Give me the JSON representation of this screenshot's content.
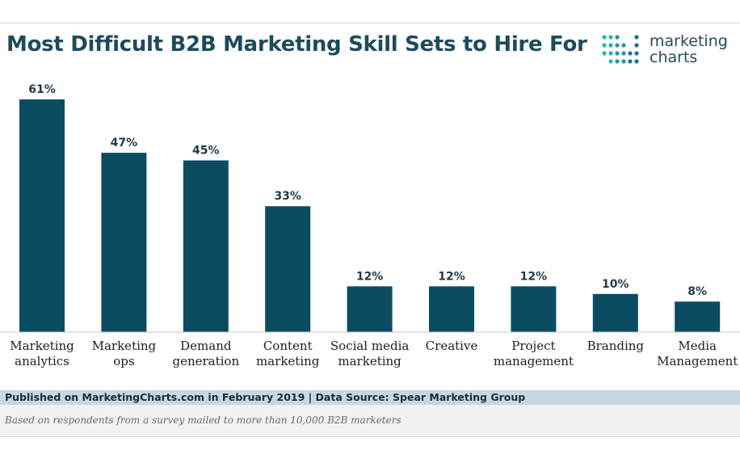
{
  "brand": {
    "logo_line1": "marketing",
    "logo_line2": "charts",
    "colors": {
      "bar": "#0c4c62",
      "title": "#1f4a5b",
      "logo_dots": [
        "#2ab5a5",
        "#1e93a6",
        "#16748f"
      ]
    }
  },
  "chart_data": {
    "type": "bar",
    "title": "Most Difficult B2B Marketing Skill Sets to Hire For",
    "xlabel": "",
    "ylabel": "",
    "ylim": [
      0,
      61
    ],
    "grid": false,
    "categories": [
      [
        "Marketing",
        "analytics"
      ],
      [
        "Marketing",
        "ops"
      ],
      [
        "Demand",
        "generation"
      ],
      [
        "Content",
        "marketing"
      ],
      [
        "Social media",
        "marketing"
      ],
      [
        "Creative"
      ],
      [
        "Project",
        "management"
      ],
      [
        "Branding"
      ],
      [
        "Media",
        "Management"
      ]
    ],
    "values": [
      61,
      47,
      45,
      33,
      12,
      12,
      12,
      10,
      8
    ],
    "value_labels": [
      "61%",
      "47%",
      "45%",
      "33%",
      "12%",
      "12%",
      "12%",
      "10%",
      "8%"
    ]
  },
  "footer": {
    "published": "Published on MarketingCharts.com in February 2019 | Data Source: Spear Marketing Group",
    "note": "Based on respondents from a survey mailed to more than 10,000 B2B marketers"
  }
}
